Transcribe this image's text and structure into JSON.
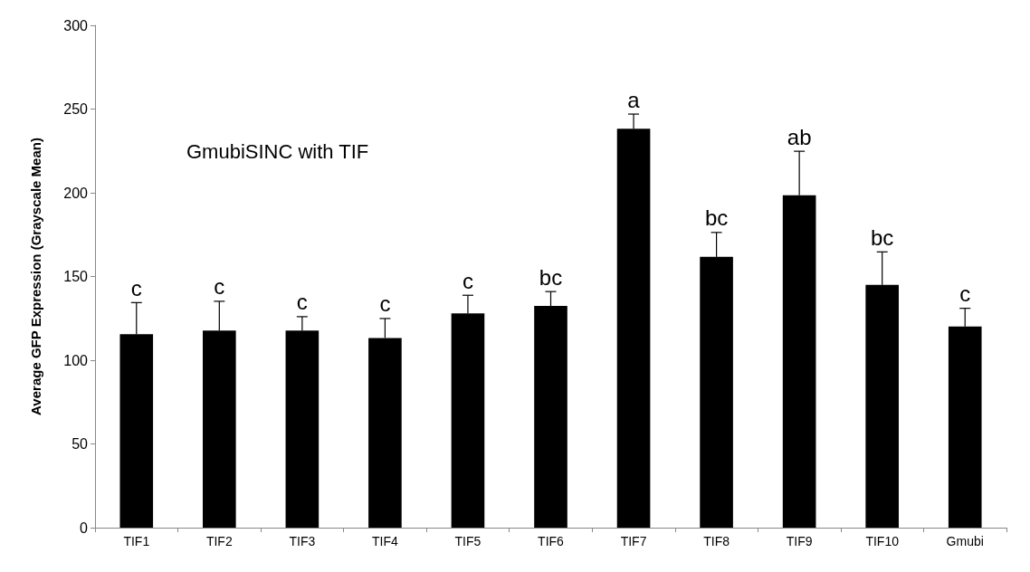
{
  "chart_data": {
    "type": "bar",
    "title": "GmubiSINC with TIF",
    "ylabel": "Average GFP Expression (Grayscale Mean)",
    "categories": [
      "TIF1",
      "TIF2",
      "TIF3",
      "TIF4",
      "TIF5",
      "TIF6",
      "TIF7",
      "TIF8",
      "TIF9",
      "TIF10",
      "Gmubi"
    ],
    "values": [
      115.5,
      117.7,
      117.7,
      113.3,
      128,
      132.4,
      238.2,
      161.7,
      198.5,
      145,
      120.2
    ],
    "errors": [
      [
        115.5,
        134.4
      ],
      [
        117.7,
        135.2
      ],
      [
        117.7,
        126
      ],
      [
        113.3,
        124.9
      ],
      [
        128,
        138.8
      ],
      [
        132.4,
        141
      ],
      [
        238.2,
        247
      ],
      [
        161.7,
        176.3
      ],
      [
        198.5,
        224.8
      ],
      [
        145,
        164.7
      ],
      [
        120.2,
        131
      ]
    ],
    "color": "#000000",
    "ylim": [
      0,
      300
    ],
    "yticks": [
      0,
      50,
      100,
      150,
      200,
      250,
      300
    ],
    "grid": false,
    "annotations": [
      {
        "text": "c",
        "x": "TIF1",
        "y": 134.4
      },
      {
        "text": "c",
        "x": "TIF2",
        "y": 135.2
      },
      {
        "text": "c",
        "x": "TIF3",
        "y": 126
      },
      {
        "text": "c",
        "x": "TIF4",
        "y": 124.9
      },
      {
        "text": "c",
        "x": "TIF5",
        "y": 138.8
      },
      {
        "text": "bc",
        "x": "TIF6",
        "y": 141
      },
      {
        "text": "a",
        "x": "TIF7",
        "y": 247
      },
      {
        "text": "bc",
        "x": "TIF8",
        "y": 176.3
      },
      {
        "text": "ab",
        "x": "TIF9",
        "y": 224.8
      },
      {
        "text": "bc",
        "x": "TIF10",
        "y": 164.7
      },
      {
        "text": "c",
        "x": "Gmubi",
        "y": 131
      }
    ]
  }
}
